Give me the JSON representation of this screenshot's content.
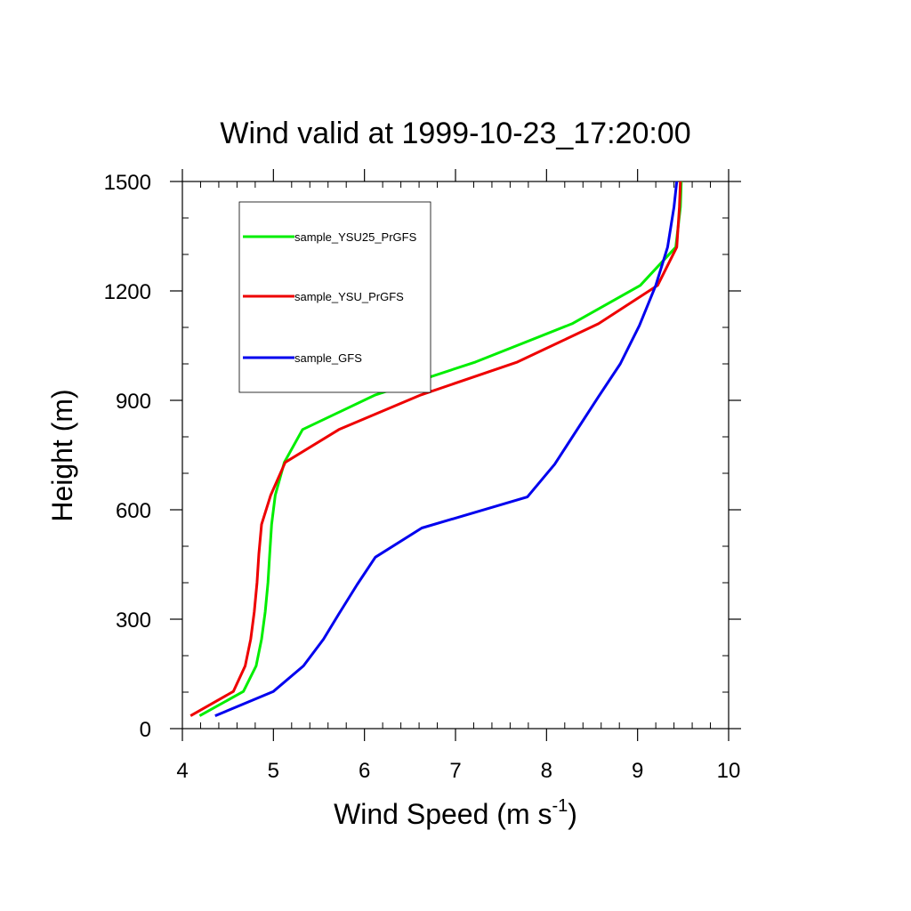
{
  "chart_data": {
    "type": "line",
    "title": "Wind valid at 1999-10-23_17:20:00",
    "xlabel_main": "Wind Speed (m s",
    "xlabel_sup": "-1",
    "xlabel_close": ")",
    "ylabel": "Height (m)",
    "xlim": [
      4,
      10
    ],
    "ylim": [
      0,
      1500
    ],
    "x_ticks": [
      4,
      5,
      6,
      7,
      8,
      9,
      10
    ],
    "x_tick_labels": [
      "4",
      "5",
      "6",
      "7",
      "8",
      "9",
      "10"
    ],
    "y_ticks": [
      0,
      300,
      600,
      900,
      1200,
      1500
    ],
    "y_tick_labels": [
      "0",
      "300",
      "600",
      "900",
      "1200",
      "1500"
    ],
    "x_minor_step": 0.2,
    "y_minor_step": 100,
    "grid": false,
    "legend_position": "top-left",
    "series": [
      {
        "name": "sample_YSU25_PrGFS",
        "color": "#00ee00",
        "points": [
          [
            4.19,
            35
          ],
          [
            4.67,
            102
          ],
          [
            4.81,
            172
          ],
          [
            4.87,
            245
          ],
          [
            4.91,
            320
          ],
          [
            4.94,
            400
          ],
          [
            4.96,
            480
          ],
          [
            4.98,
            560
          ],
          [
            5.02,
            640
          ],
          [
            5.12,
            730
          ],
          [
            5.32,
            820
          ],
          [
            6.12,
            915
          ],
          [
            7.22,
            1005
          ],
          [
            8.28,
            1110
          ],
          [
            9.03,
            1215
          ],
          [
            9.42,
            1320
          ],
          [
            9.47,
            1430
          ],
          [
            9.48,
            1500
          ]
        ]
      },
      {
        "name": "sample_YSU_PrGFS",
        "color": "#ee0000",
        "points": [
          [
            4.09,
            35
          ],
          [
            4.56,
            102
          ],
          [
            4.69,
            172
          ],
          [
            4.75,
            245
          ],
          [
            4.79,
            320
          ],
          [
            4.82,
            400
          ],
          [
            4.84,
            480
          ],
          [
            4.87,
            560
          ],
          [
            4.97,
            640
          ],
          [
            5.13,
            730
          ],
          [
            5.72,
            820
          ],
          [
            6.62,
            915
          ],
          [
            7.68,
            1005
          ],
          [
            8.57,
            1110
          ],
          [
            9.22,
            1215
          ],
          [
            9.43,
            1320
          ],
          [
            9.46,
            1430
          ],
          [
            9.47,
            1500
          ]
        ]
      },
      {
        "name": "sample_GFS",
        "color": "#0000ee",
        "points": [
          [
            4.36,
            35
          ],
          [
            5.0,
            102
          ],
          [
            5.33,
            172
          ],
          [
            5.55,
            245
          ],
          [
            5.72,
            315
          ],
          [
            5.92,
            395
          ],
          [
            6.12,
            470
          ],
          [
            6.63,
            550
          ],
          [
            7.79,
            635
          ],
          [
            8.09,
            725
          ],
          [
            8.57,
            910
          ],
          [
            8.81,
            1000
          ],
          [
            9.02,
            1105
          ],
          [
            9.2,
            1215
          ],
          [
            9.33,
            1320
          ],
          [
            9.4,
            1430
          ],
          [
            9.43,
            1500
          ]
        ]
      }
    ]
  }
}
